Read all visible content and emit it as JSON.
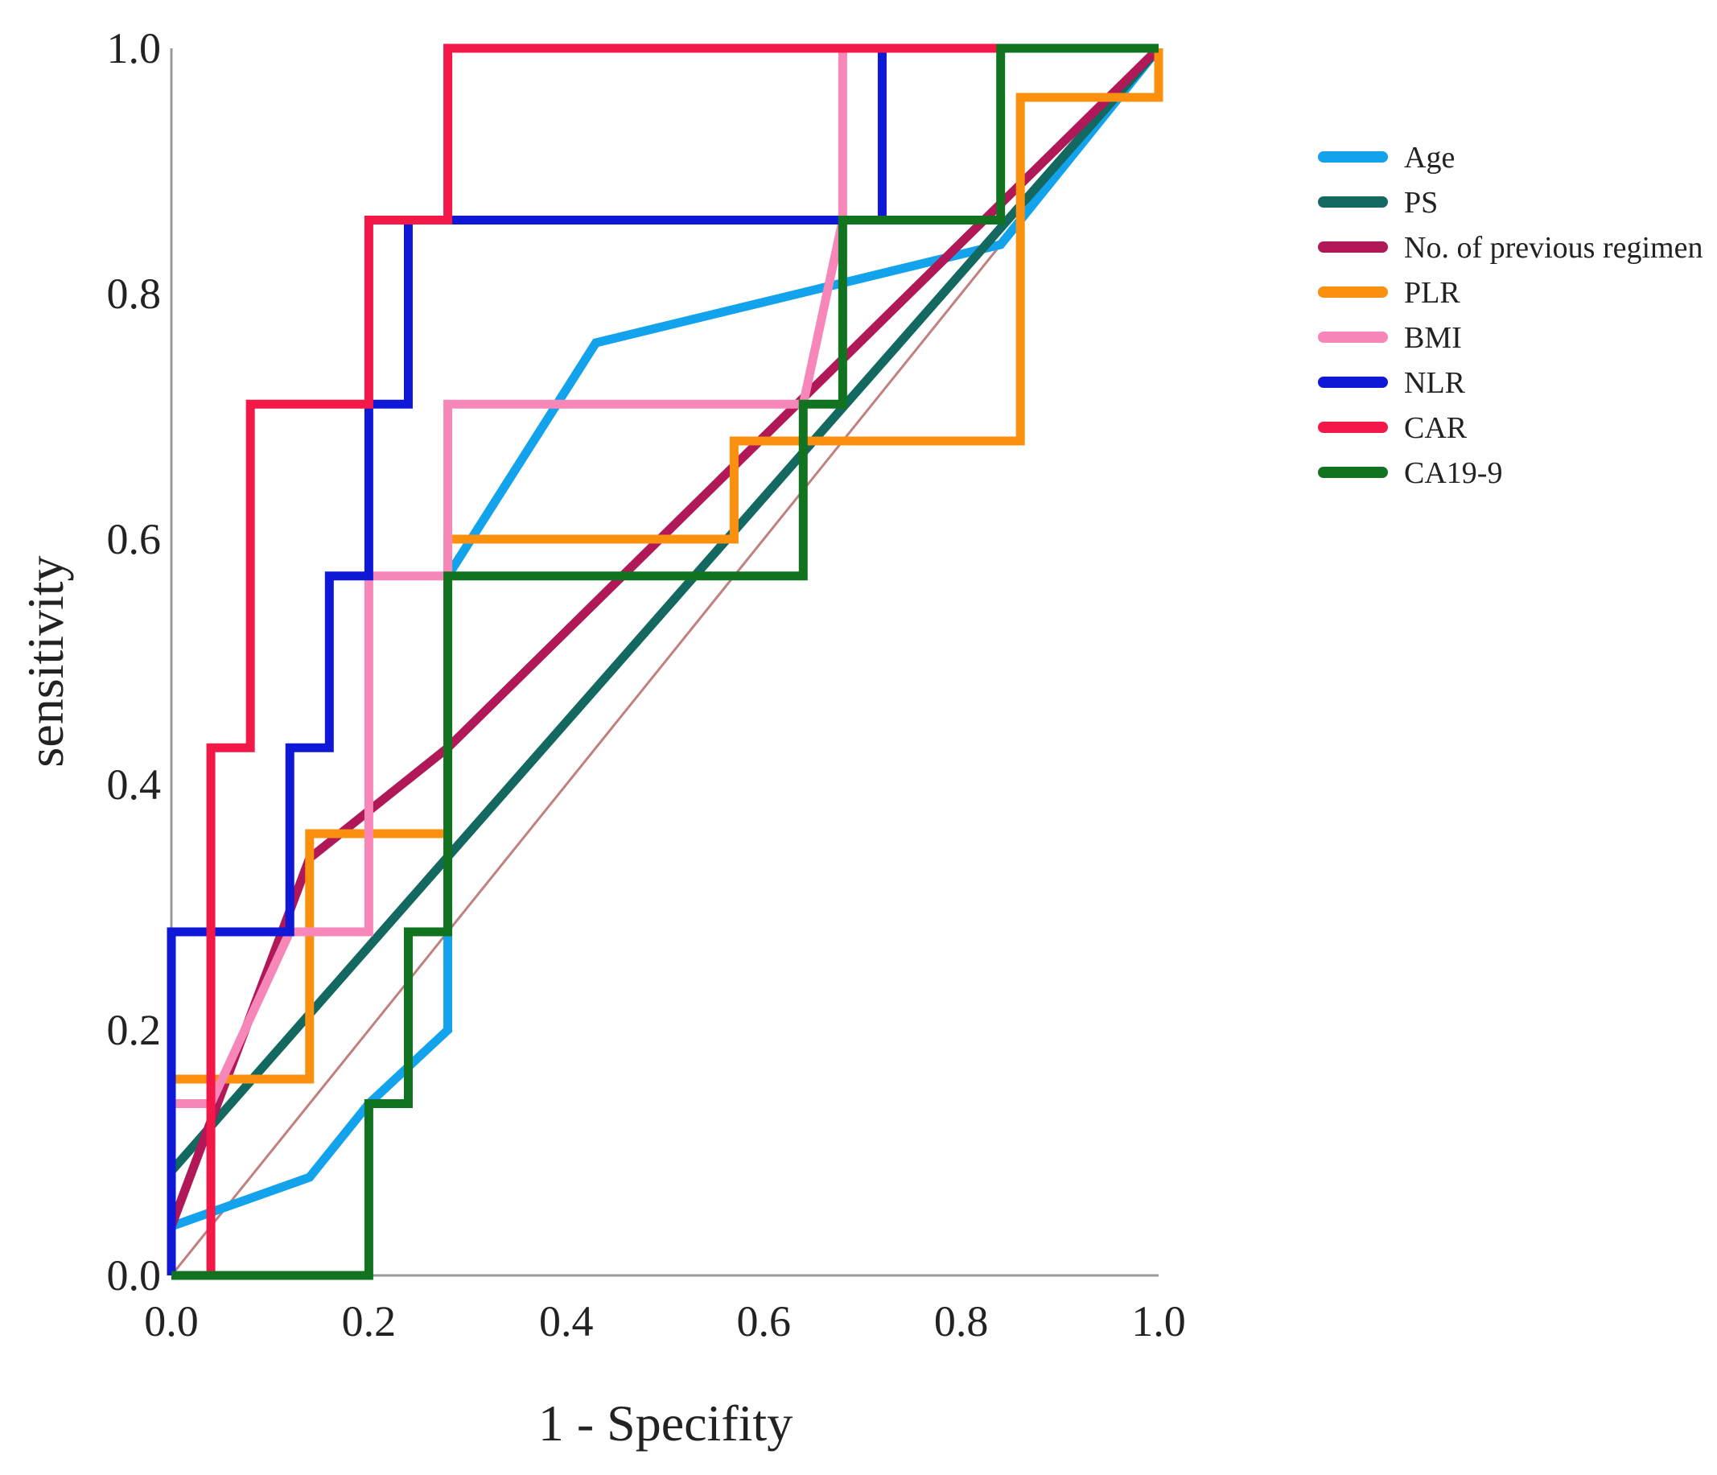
{
  "chart_data": {
    "type": "line",
    "title": "",
    "xlabel": "1 - Specifity",
    "ylabel": "sensitivity",
    "xlim": [
      0,
      1
    ],
    "ylim": [
      0,
      1
    ],
    "xticks": [
      "0.0",
      "0.2",
      "0.4",
      "0.6",
      "0.8",
      "1.0"
    ],
    "yticks": [
      "0.0",
      "0.2",
      "0.4",
      "0.6",
      "0.8",
      "1.0"
    ],
    "grid": false,
    "legend_position": "right",
    "reference_line": {
      "color": "#c08080",
      "points": [
        [
          0,
          0
        ],
        [
          1,
          1
        ]
      ]
    },
    "series": [
      {
        "name": "Age",
        "color": "#12a3ec",
        "points": [
          [
            0,
            0.04
          ],
          [
            0.14,
            0.08
          ],
          [
            0.2,
            0.14
          ],
          [
            0.28,
            0.2
          ],
          [
            0.28,
            0.57
          ],
          [
            0.43,
            0.76
          ],
          [
            0.84,
            0.84
          ],
          [
            1,
            1
          ]
        ]
      },
      {
        "name": "PS",
        "color": "#136860",
        "points": [
          [
            0,
            0.085
          ],
          [
            1,
            1
          ]
        ]
      },
      {
        "name": "No. of previous regimen",
        "color": "#b01858",
        "points": [
          [
            0,
            0.04
          ],
          [
            0.14,
            0.34
          ],
          [
            0.28,
            0.43
          ],
          [
            1,
            1
          ]
        ]
      },
      {
        "name": "PLR",
        "color": "#fb900e",
        "points": [
          [
            0,
            0.16
          ],
          [
            0.14,
            0.16
          ],
          [
            0.14,
            0.36
          ],
          [
            0.27,
            0.36
          ],
          [
            0.28,
            0.36
          ],
          [
            0.28,
            0.6
          ],
          [
            0.57,
            0.6
          ],
          [
            0.57,
            0.68
          ],
          [
            0.86,
            0.68
          ],
          [
            0.86,
            0.96
          ],
          [
            1,
            0.96
          ],
          [
            1,
            1
          ]
        ]
      },
      {
        "name": "BMI",
        "color": "#f787b8",
        "points": [
          [
            0,
            0.14
          ],
          [
            0.04,
            0.14
          ],
          [
            0.12,
            0.28
          ],
          [
            0.2,
            0.28
          ],
          [
            0.2,
            0.57
          ],
          [
            0.28,
            0.57
          ],
          [
            0.28,
            0.71
          ],
          [
            0.64,
            0.71
          ],
          [
            0.68,
            0.86
          ],
          [
            0.68,
            1
          ],
          [
            1,
            1
          ]
        ]
      },
      {
        "name": "NLR",
        "color": "#1018d8",
        "points": [
          [
            0,
            0
          ],
          [
            0,
            0.28
          ],
          [
            0.12,
            0.28
          ],
          [
            0.12,
            0.43
          ],
          [
            0.16,
            0.43
          ],
          [
            0.16,
            0.57
          ],
          [
            0.2,
            0.57
          ],
          [
            0.2,
            0.71
          ],
          [
            0.24,
            0.71
          ],
          [
            0.24,
            0.86
          ],
          [
            0.72,
            0.86
          ],
          [
            0.72,
            1
          ],
          [
            1,
            1
          ]
        ]
      },
      {
        "name": "CAR",
        "color": "#f31848",
        "points": [
          [
            0.04,
            0
          ],
          [
            0.04,
            0.43
          ],
          [
            0.08,
            0.43
          ],
          [
            0.08,
            0.71
          ],
          [
            0.2,
            0.71
          ],
          [
            0.2,
            0.86
          ],
          [
            0.28,
            0.86
          ],
          [
            0.28,
            1
          ],
          [
            1,
            1
          ]
        ]
      },
      {
        "name": "CA19-9",
        "color": "#117320",
        "points": [
          [
            0,
            0
          ],
          [
            0.2,
            0
          ],
          [
            0.2,
            0.14
          ],
          [
            0.24,
            0.14
          ],
          [
            0.24,
            0.28
          ],
          [
            0.28,
            0.28
          ],
          [
            0.28,
            0.57
          ],
          [
            0.64,
            0.57
          ],
          [
            0.64,
            0.71
          ],
          [
            0.68,
            0.71
          ],
          [
            0.68,
            0.86
          ],
          [
            0.84,
            0.86
          ],
          [
            0.84,
            1
          ],
          [
            1,
            1
          ]
        ]
      }
    ]
  }
}
